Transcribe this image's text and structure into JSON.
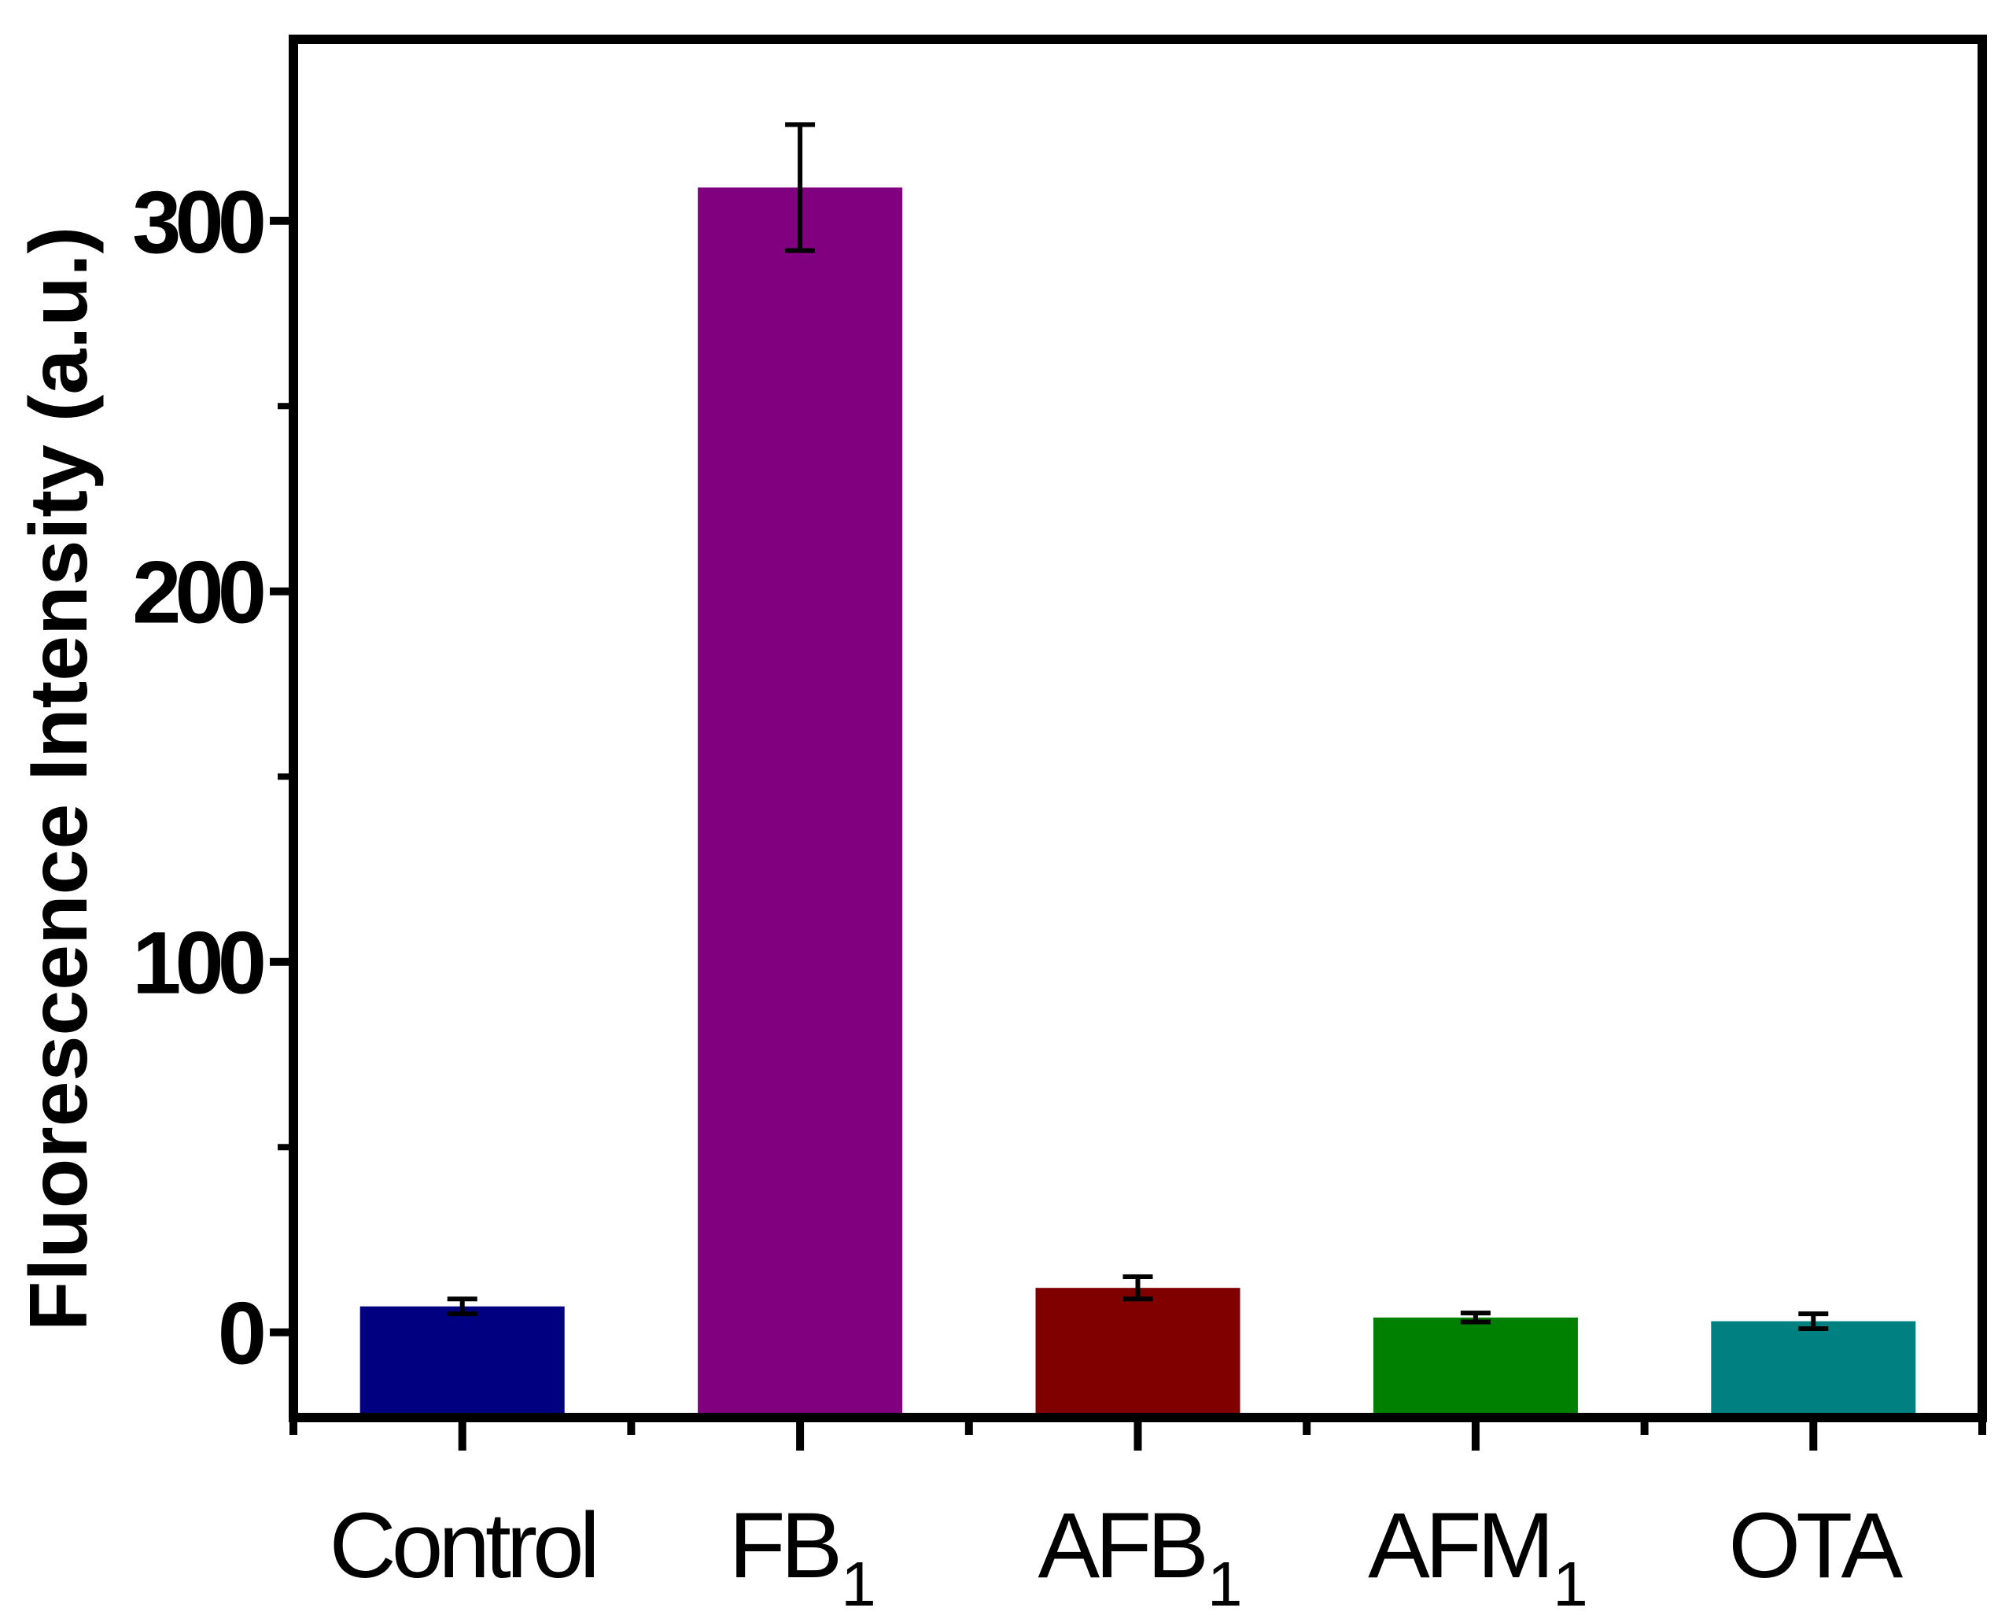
{
  "chart_data": {
    "type": "bar",
    "title": "",
    "xlabel": "",
    "ylabel": "Fluorescence Intensity (a.u.)",
    "categories": [
      {
        "label": "Control",
        "subscript": ""
      },
      {
        "label": "FB",
        "subscript": "1"
      },
      {
        "label": "AFB",
        "subscript": "1"
      },
      {
        "label": "AFM",
        "subscript": "1"
      },
      {
        "label": "OTA",
        "subscript": ""
      }
    ],
    "values": [
      7,
      309,
      12,
      4,
      3
    ],
    "errors": [
      2,
      17,
      3,
      1.2,
      2
    ],
    "colors": [
      "#000080",
      "#800080",
      "#800000",
      "#008000",
      "#008080"
    ],
    "ylim": [
      -23,
      349
    ],
    "yticks_major": [
      0,
      100,
      200,
      300
    ],
    "yticks_minor": [
      50,
      150,
      250
    ],
    "grid": false,
    "legend": "none"
  }
}
